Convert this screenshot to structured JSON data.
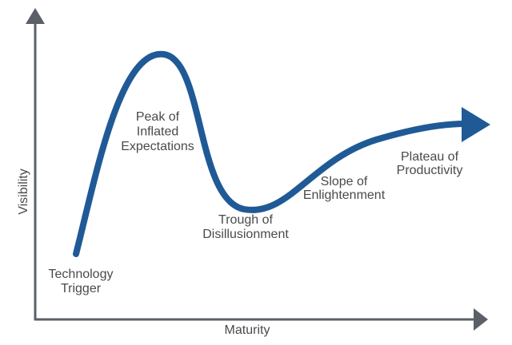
{
  "axes": {
    "y_label": "Visibility",
    "x_label": "Maturity"
  },
  "phases": [
    {
      "lines": [
        "Technology",
        "Trigger"
      ]
    },
    {
      "lines": [
        "Peak of",
        "Inflated",
        "Expectations"
      ]
    },
    {
      "lines": [
        "Trough of",
        "Disillusionment"
      ]
    },
    {
      "lines": [
        "Slope of",
        "Enlightenment"
      ]
    },
    {
      "lines": [
        "Plateau of",
        "Productivity"
      ]
    }
  ]
}
